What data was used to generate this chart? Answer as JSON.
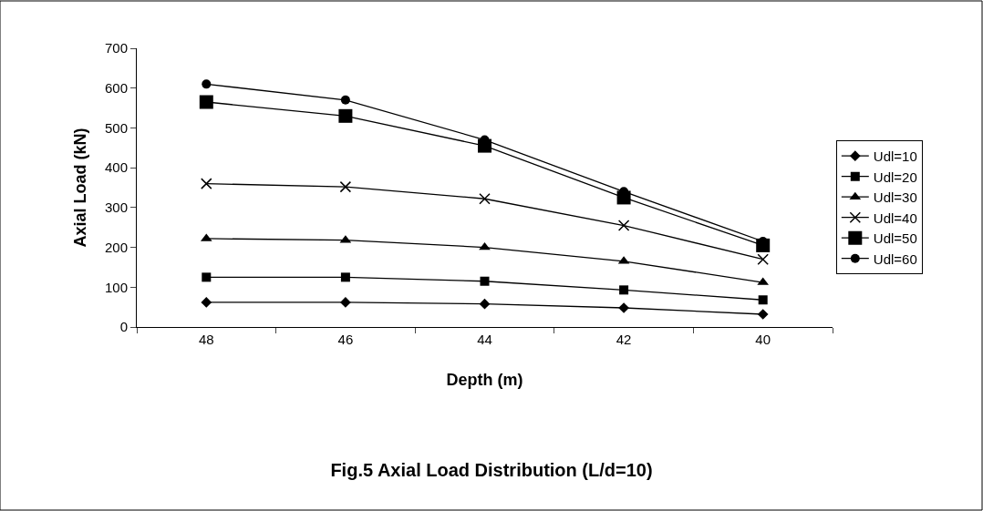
{
  "chart_data": {
    "type": "line",
    "title": "Fig.5 Axial Load Distribution (L/d=10)",
    "xlabel": "Depth (m)",
    "ylabel": "Axial Load (kN)",
    "categories": [
      "48",
      "46",
      "44",
      "42",
      "40"
    ],
    "series": [
      {
        "name": "Udl=10",
        "color": "#000000",
        "marker": "diamond",
        "values": [
          62,
          62,
          58,
          48,
          32
        ]
      },
      {
        "name": "Udl=20",
        "color": "#000000",
        "marker": "square",
        "values": [
          125,
          125,
          115,
          93,
          68
        ]
      },
      {
        "name": "Udl=30",
        "color": "#000000",
        "marker": "triangle",
        "values": [
          222,
          218,
          200,
          165,
          112
        ]
      },
      {
        "name": "Udl=40",
        "color": "#000000",
        "marker": "cross",
        "values": [
          360,
          352,
          322,
          255,
          170
        ]
      },
      {
        "name": "Udl=50",
        "color": "#000000",
        "marker": "square",
        "values": [
          565,
          530,
          455,
          325,
          205
        ]
      },
      {
        "name": "Udl=60",
        "color": "#000000",
        "marker": "circle",
        "values": [
          610,
          570,
          470,
          340,
          215
        ]
      }
    ],
    "ylim": [
      0,
      700
    ],
    "yticks": [
      0,
      100,
      200,
      300,
      400,
      500,
      600,
      700
    ],
    "grid": false,
    "legend": "right",
    "line_style": "solid"
  }
}
